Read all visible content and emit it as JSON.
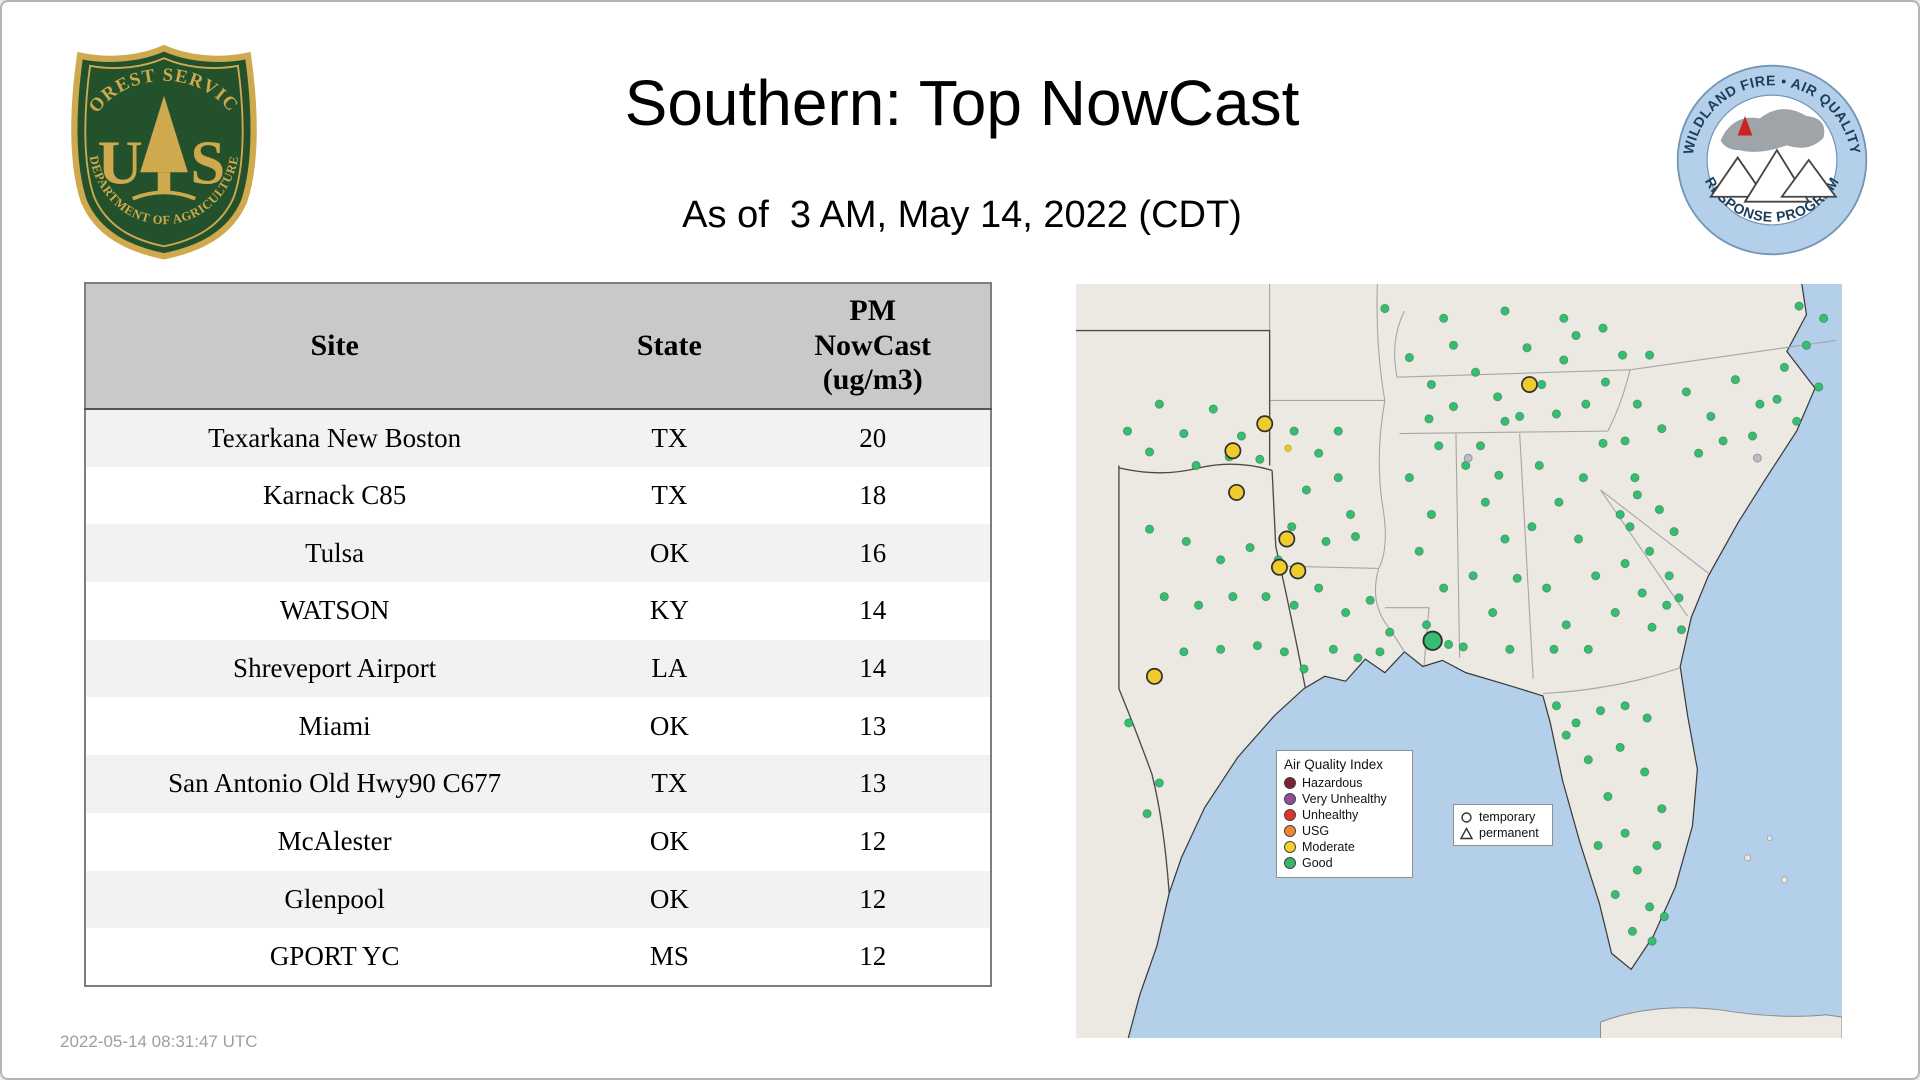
{
  "page": {
    "title": "Southern: Top NowCast",
    "subtitle": "As of  3 AM, May 14, 2022 (CDT)",
    "timestamp": "2022-05-14 08:31:47 UTC"
  },
  "logos": {
    "usfs": {
      "ring_top": "FOREST SERVICE",
      "letter_left": "U",
      "letter_right": "S",
      "ring_bottom": "DEPARTMENT OF AGRICULTURE",
      "shield_green": "#23512c",
      "gold": "#cfa94e"
    },
    "wfaqrp": {
      "ring_top": "WILDLAND FIRE • AIR QUALITY",
      "ring_bottom": "RESPONSE PROGRAM",
      "ring_blue": "#b3cfe9",
      "text_blue": "#1c3d5a"
    }
  },
  "table": {
    "headers": {
      "site": "Site",
      "state": "State",
      "pm": "PM NowCast (ug/m3)"
    },
    "rows": [
      {
        "site": "Texarkana New Boston",
        "state": "TX",
        "pm": "20"
      },
      {
        "site": "Karnack C85",
        "state": "TX",
        "pm": "18"
      },
      {
        "site": "Tulsa",
        "state": "OK",
        "pm": "16"
      },
      {
        "site": "WATSON",
        "state": "KY",
        "pm": "14"
      },
      {
        "site": "Shreveport Airport",
        "state": "LA",
        "pm": "14"
      },
      {
        "site": "Miami",
        "state": "OK",
        "pm": "13"
      },
      {
        "site": "San Antonio Old Hwy90 C677",
        "state": "TX",
        "pm": "13"
      },
      {
        "site": "McAlester",
        "state": "OK",
        "pm": "12"
      },
      {
        "site": "Glenpool",
        "state": "OK",
        "pm": "12"
      },
      {
        "site": "GPORT YC",
        "state": "MS",
        "pm": "12"
      }
    ]
  },
  "map": {
    "colors": {
      "ocean": "#b4cfe9",
      "land": "#ece9e3",
      "good": "#37bd71",
      "moderate": "#f0cb2e",
      "inactive": "#b9bdc4"
    },
    "legend": {
      "title": "Air Quality Index",
      "items": [
        {
          "label": "Hazardous",
          "color": "#7d2133"
        },
        {
          "label": "Very Unhealthy",
          "color": "#8f4d9b"
        },
        {
          "label": "Unhealthy",
          "color": "#e0342c"
        },
        {
          "label": "USG",
          "color": "#ef8632"
        },
        {
          "label": "Moderate",
          "color": "#f2d130"
        },
        {
          "label": "Good",
          "color": "#37b56a"
        }
      ]
    },
    "marker_types": {
      "temporary": "temporary",
      "permanent": "permanent"
    },
    "markers": {
      "good": [
        [
          60,
          200
        ],
        [
          90,
          210
        ],
        [
          118,
          225
        ],
        [
          142,
          215
        ],
        [
          165,
          225
        ],
        [
          72,
          255
        ],
        [
          100,
          262
        ],
        [
          128,
          255
        ],
        [
          155,
          255
        ],
        [
          178,
          262
        ],
        [
          88,
          300
        ],
        [
          118,
          298
        ],
        [
          148,
          295
        ],
        [
          170,
          300
        ],
        [
          186,
          314
        ],
        [
          43,
          358
        ],
        [
          68,
          407
        ],
        [
          58,
          432
        ],
        [
          42,
          120
        ],
        [
          68,
          98
        ],
        [
          88,
          122
        ],
        [
          112,
          102
        ],
        [
          135,
          124
        ],
        [
          150,
          143
        ],
        [
          98,
          148
        ],
        [
          60,
          137
        ],
        [
          125,
          141
        ],
        [
          178,
          120
        ],
        [
          198,
          138
        ],
        [
          188,
          168
        ],
        [
          214,
          158
        ],
        [
          224,
          188
        ],
        [
          176,
          198
        ],
        [
          204,
          210
        ],
        [
          228,
          206
        ],
        [
          214,
          120
        ],
        [
          198,
          248
        ],
        [
          220,
          268
        ],
        [
          240,
          258
        ],
        [
          256,
          284
        ],
        [
          210,
          298
        ],
        [
          230,
          305
        ],
        [
          248,
          300
        ],
        [
          272,
          158
        ],
        [
          290,
          188
        ],
        [
          280,
          218
        ],
        [
          300,
          248
        ],
        [
          286,
          278
        ],
        [
          296,
          132
        ],
        [
          304,
          294
        ],
        [
          318,
          148
        ],
        [
          334,
          178
        ],
        [
          350,
          208
        ],
        [
          324,
          238
        ],
        [
          340,
          268
        ],
        [
          354,
          298
        ],
        [
          316,
          296
        ],
        [
          330,
          132
        ],
        [
          345,
          156
        ],
        [
          360,
          240
        ],
        [
          272,
          60
        ],
        [
          290,
          82
        ],
        [
          308,
          100
        ],
        [
          326,
          72
        ],
        [
          344,
          92
        ],
        [
          362,
          108
        ],
        [
          380,
          82
        ],
        [
          398,
          62
        ],
        [
          288,
          110
        ],
        [
          308,
          50
        ],
        [
          416,
          98
        ],
        [
          432,
          80
        ],
        [
          368,
          52
        ],
        [
          350,
          112
        ],
        [
          392,
          106
        ],
        [
          408,
          42
        ],
        [
          430,
          36
        ],
        [
          446,
          58
        ],
        [
          300,
          28
        ],
        [
          350,
          22
        ],
        [
          398,
          28
        ],
        [
          252,
          20
        ],
        [
          378,
          148
        ],
        [
          394,
          178
        ],
        [
          410,
          208
        ],
        [
          424,
          238
        ],
        [
          440,
          268
        ],
        [
          384,
          248
        ],
        [
          400,
          278
        ],
        [
          372,
          198
        ],
        [
          414,
          158
        ],
        [
          430,
          130
        ],
        [
          444,
          188
        ],
        [
          390,
          298
        ],
        [
          418,
          298
        ],
        [
          448,
          228
        ],
        [
          456,
          158
        ],
        [
          462,
          252
        ],
        [
          470,
          280
        ],
        [
          452,
          198
        ],
        [
          468,
          218
        ],
        [
          484,
          238
        ],
        [
          458,
          172
        ],
        [
          488,
          202
        ],
        [
          476,
          184
        ],
        [
          492,
          256
        ],
        [
          458,
          98
        ],
        [
          478,
          118
        ],
        [
          498,
          88
        ],
        [
          518,
          108
        ],
        [
          538,
          78
        ],
        [
          558,
          98
        ],
        [
          578,
          68
        ],
        [
          596,
          50
        ],
        [
          448,
          128
        ],
        [
          468,
          58
        ],
        [
          508,
          138
        ],
        [
          528,
          128
        ],
        [
          552,
          124
        ],
        [
          572,
          94
        ],
        [
          588,
          112
        ],
        [
          606,
          84
        ],
        [
          610,
          28
        ],
        [
          590,
          18
        ],
        [
          392,
          344
        ],
        [
          408,
          358
        ],
        [
          428,
          348
        ],
        [
          448,
          344
        ],
        [
          466,
          354
        ],
        [
          418,
          388
        ],
        [
          434,
          418
        ],
        [
          448,
          448
        ],
        [
          458,
          478
        ],
        [
          468,
          508
        ],
        [
          454,
          528
        ],
        [
          440,
          498
        ],
        [
          426,
          458
        ],
        [
          444,
          378
        ],
        [
          464,
          398
        ],
        [
          478,
          428
        ],
        [
          474,
          458
        ],
        [
          480,
          516
        ],
        [
          470,
          536
        ],
        [
          400,
          368
        ],
        [
          482,
          262
        ],
        [
          494,
          282
        ]
      ],
      "moderate": [
        [
          370,
          82
        ],
        [
          154,
          114
        ],
        [
          128,
          136
        ],
        [
          131,
          170
        ],
        [
          172,
          208
        ],
        [
          166,
          231
        ],
        [
          181,
          234
        ],
        [
          64,
          320
        ]
      ],
      "moderate_small": [
        [
          173,
          134
        ]
      ],
      "good_large": [
        [
          291,
          291
        ]
      ],
      "inactive": [
        [
          320,
          142
        ],
        [
          556,
          142
        ]
      ]
    }
  }
}
